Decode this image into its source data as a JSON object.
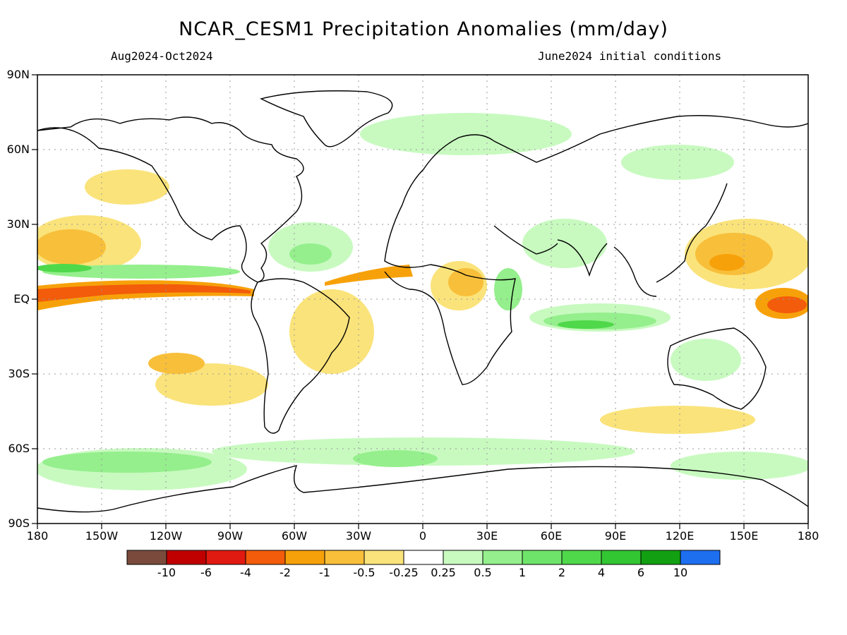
{
  "title": "NCAR_CESM1 Precipitation Anomalies (mm/day)",
  "subtitle_left": "Aug2024-Oct2024",
  "subtitle_right": "June2024 initial conditions",
  "y_axis_labels": [
    "90N",
    "60N",
    "30N",
    "EQ",
    "30S",
    "60S",
    "90S"
  ],
  "x_axis_labels": [
    "180",
    "150W",
    "120W",
    "90W",
    "60W",
    "30W",
    "0",
    "30E",
    "60E",
    "90E",
    "120E",
    "150E",
    "180"
  ],
  "colorbar": {
    "colors": [
      "#7a4b3c",
      "#c00000",
      "#e01a10",
      "#f25c0a",
      "#f7a10a",
      "#f8bf3a",
      "#fae37a",
      "#ffffff",
      "#c8fac0",
      "#94ef8c",
      "#6fe46a",
      "#4fd84a",
      "#33c633",
      "#12a012",
      "#1e6ef0"
    ],
    "labels": [
      "-10",
      "-6",
      "-4",
      "-2",
      "-1",
      "-0.5",
      "-0.25",
      "0.25",
      "0.5",
      "1",
      "2",
      "4",
      "6",
      "10"
    ]
  },
  "colors": {
    "dry_strong": "#f25c0a",
    "dry_medium": "#f7a10a",
    "dry_light": "#fae37a",
    "wet_light": "#c8fac0",
    "wet_medium": "#94ef8c",
    "wet_strong": "#4fd84a",
    "coastline": "#000000",
    "grid": "#9a9a9a"
  }
}
